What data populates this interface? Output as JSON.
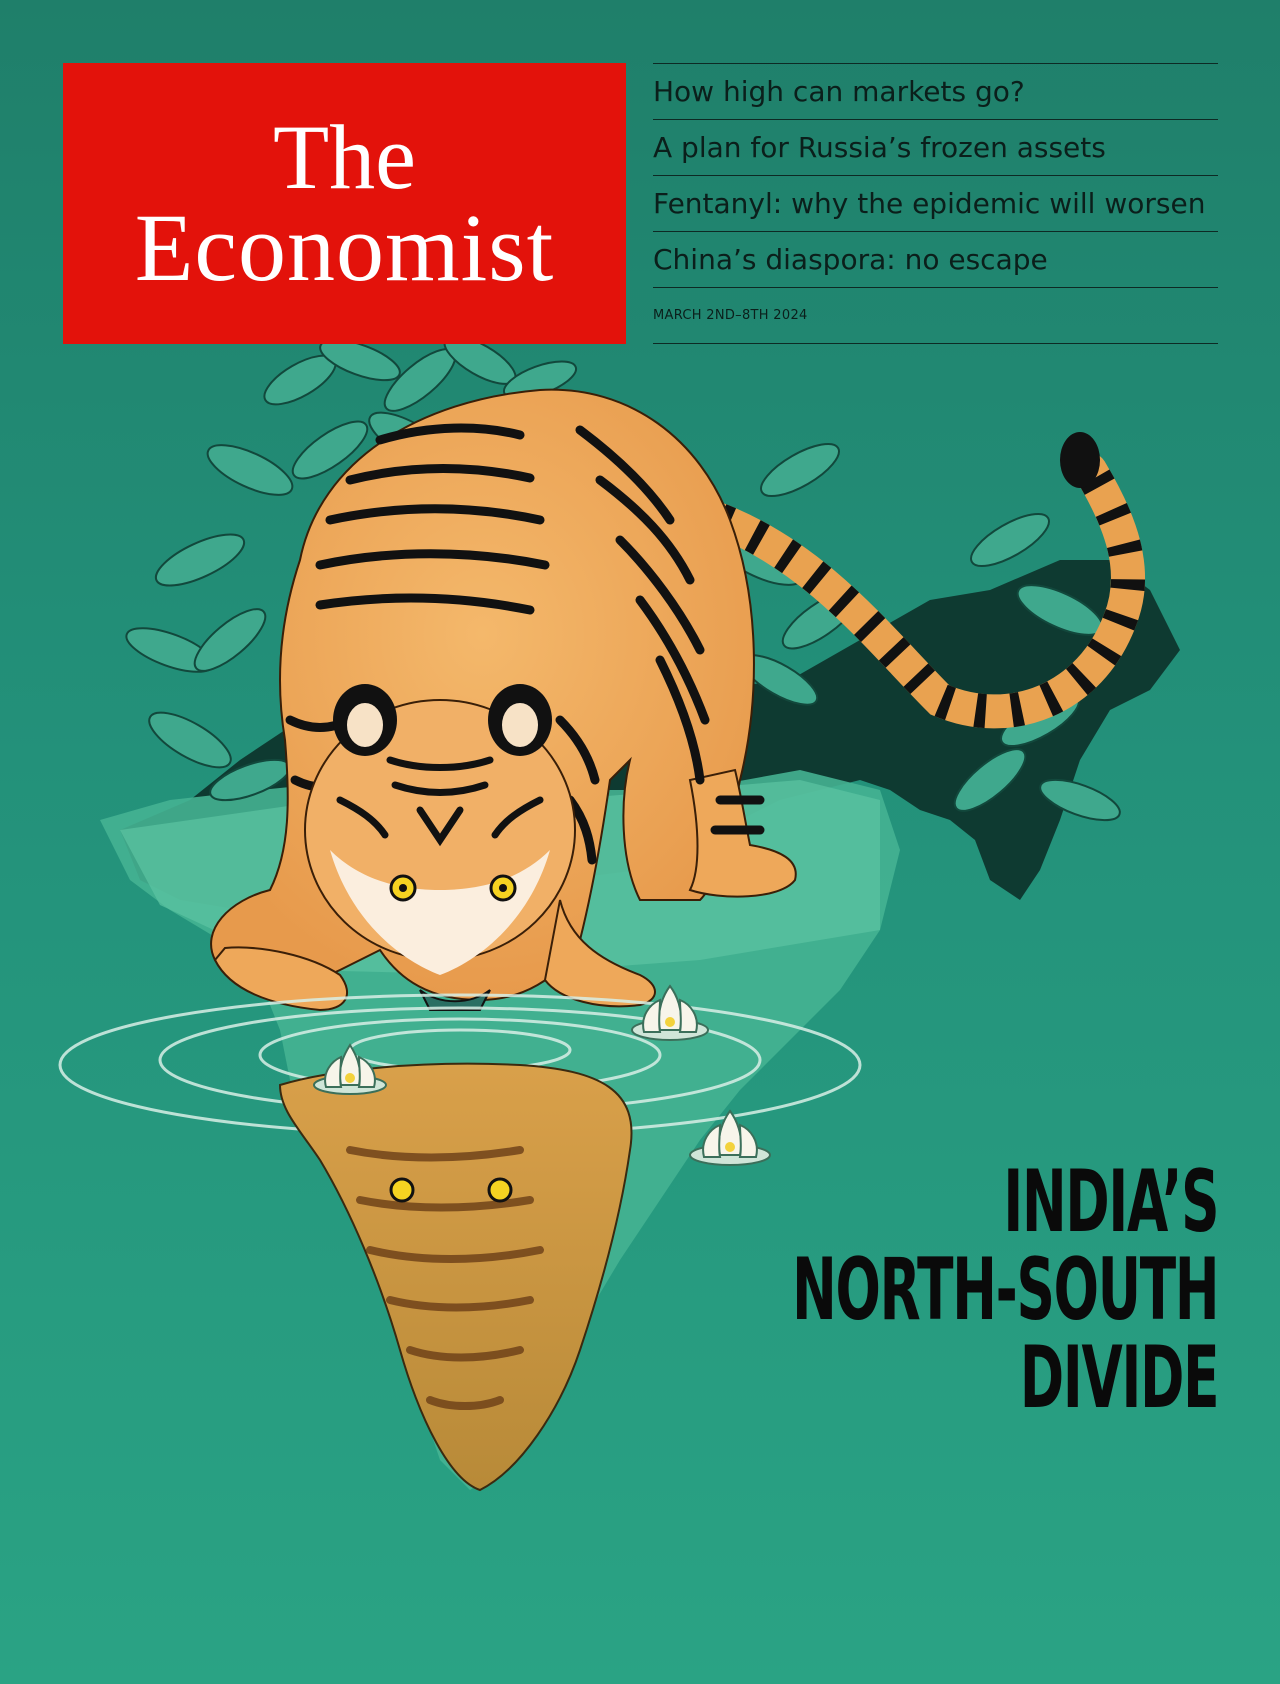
{
  "masthead": {
    "line1": "The",
    "line2": "Economist"
  },
  "cover_lines": [
    "How high can markets go?",
    "A plan for Russia’s frozen assets",
    "Fentanyl: why the epidemic will worsen",
    "China’s diaspora: no escape"
  ],
  "issue_date": "MARCH 2ND–8TH 2024",
  "cover_story": {
    "line1": "INDIA’S",
    "line2": "NORTH-SOUTH",
    "line3": "DIVIDE"
  },
  "colors": {
    "background": "#23917a",
    "masthead_red": "#e3120b",
    "tiger_orange": "#eea85a",
    "text_dark": "#0b1f1b"
  }
}
